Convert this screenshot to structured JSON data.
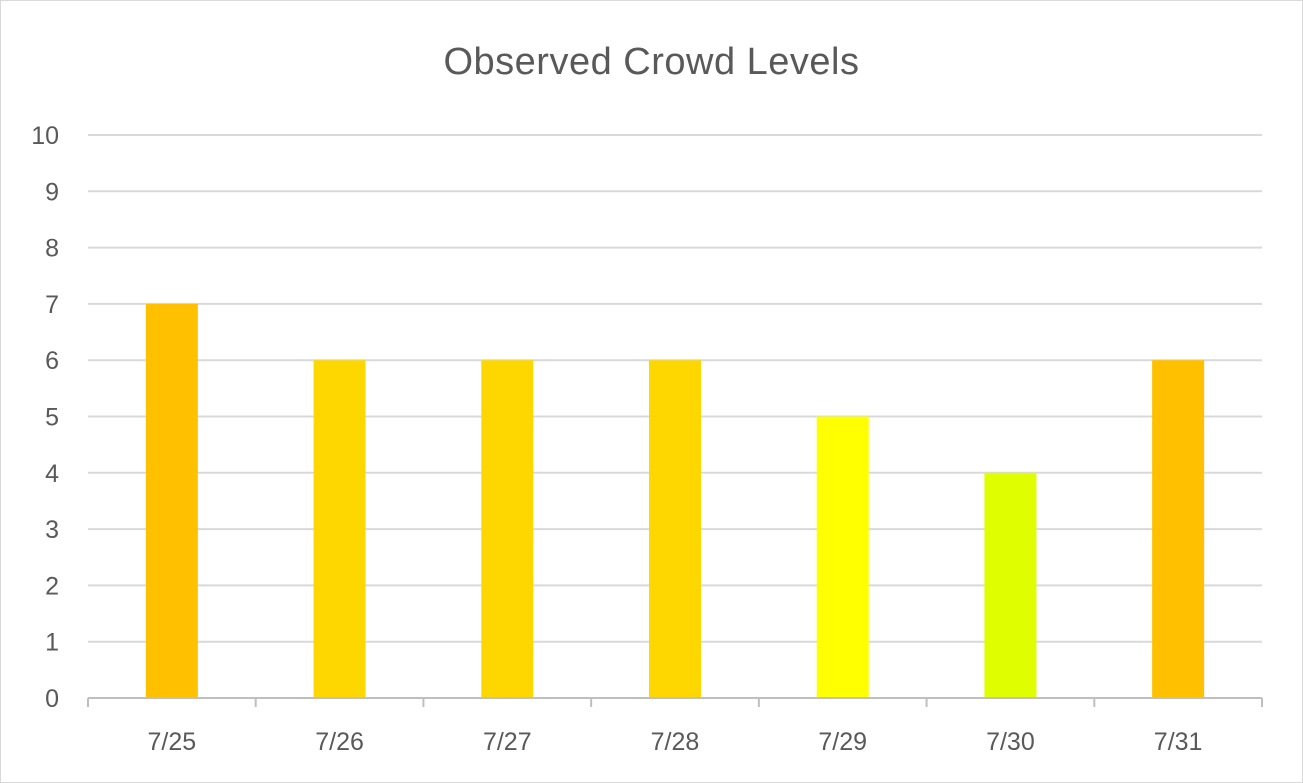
{
  "chart_data": {
    "type": "bar",
    "title": "Observed Crowd Levels",
    "xlabel": "",
    "ylabel": "",
    "categories": [
      "7/25",
      "7/26",
      "7/27",
      "7/28",
      "7/29",
      "7/30",
      "7/31"
    ],
    "values": [
      7,
      6,
      6,
      6,
      5,
      4,
      6
    ],
    "bar_colors": [
      "#FFC000",
      "#FFD700",
      "#FFD700",
      "#FFD700",
      "#FFFF00",
      "#DFFF00",
      "#FFC000"
    ],
    "ylim": [
      0,
      10
    ],
    "yticks": [
      0,
      1,
      2,
      3,
      4,
      5,
      6,
      7,
      8,
      9,
      10
    ],
    "grid": true,
    "legend": "none"
  },
  "colors": {
    "gridline": "#d9d9d9",
    "axis": "#bfbfbf",
    "text": "#595959"
  }
}
